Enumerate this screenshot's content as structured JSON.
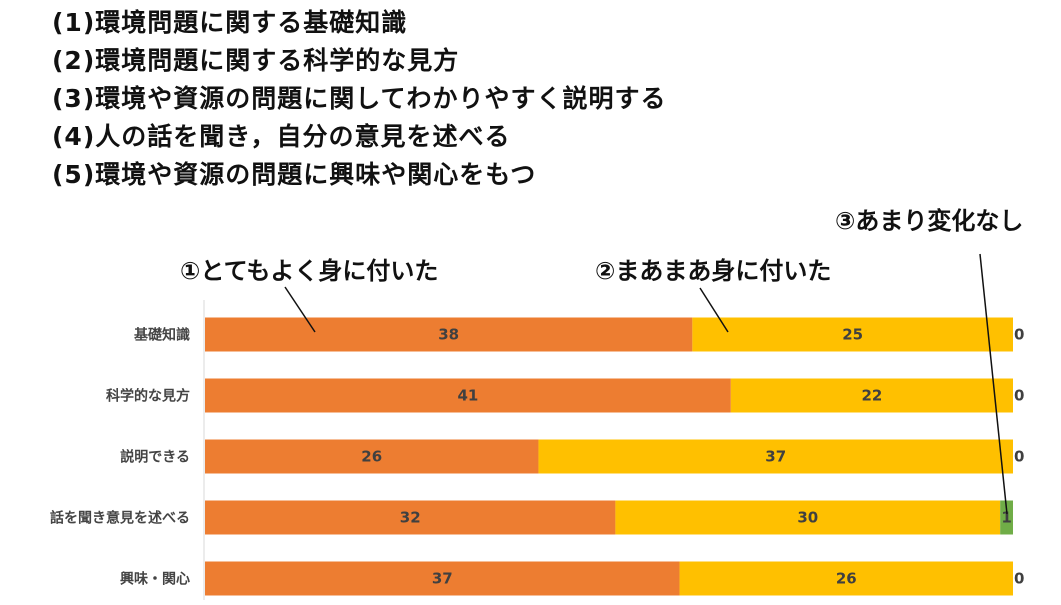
{
  "headings": [
    "(1)環境問題に関する基礎知識",
    "(2)環境問題に関する科学的な見方",
    "(3)環境や資源の問題に関してわかりやすく説明する",
    "(4)人の話を聞き，自分の意見を述べる",
    "(5)環境や資源の問題に興味や関心をもつ"
  ],
  "chart_data": {
    "type": "bar",
    "orientation": "horizontal",
    "stacked": true,
    "categories": [
      "基礎知識",
      "科学的な見方",
      "説明できる",
      "話を聞き意見を述べる",
      "興味・関心"
    ],
    "series": [
      {
        "name": "①とてもよく身に付いた",
        "color": "#ED7D31",
        "values": [
          38,
          41,
          26,
          32,
          37
        ]
      },
      {
        "name": "②まあまあ身に付いた",
        "color": "#FFC000",
        "values": [
          25,
          22,
          37,
          30,
          26
        ]
      },
      {
        "name": "③あまり変化なし",
        "color": "#70AD47",
        "values": [
          0,
          0,
          0,
          1,
          0
        ]
      }
    ],
    "xlim": [
      0,
      63
    ],
    "legend": "callouts",
    "grid": false
  }
}
